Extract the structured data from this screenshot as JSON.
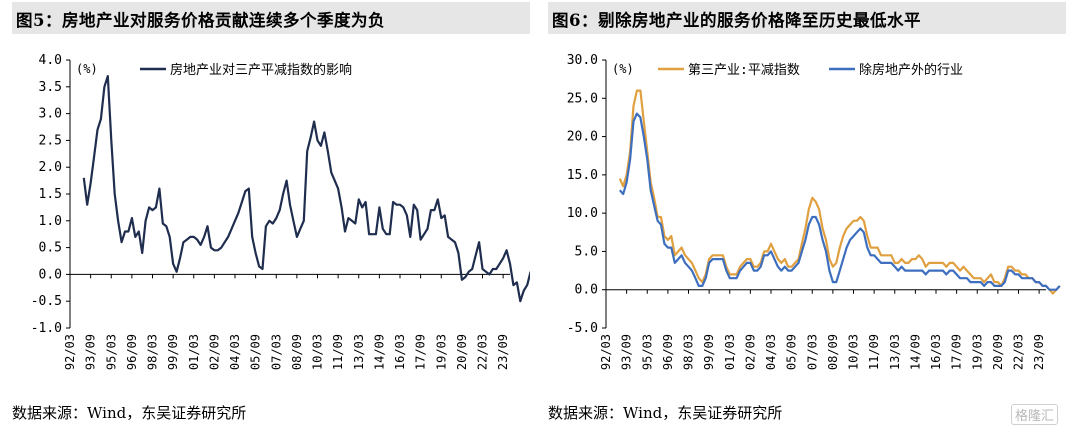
{
  "panels": [
    {
      "title": "图5：房地产业对服务价格贡献连续多个季度为负",
      "source": "数据来源：Wind，东吴证券研究所",
      "chart_data": {
        "type": "line",
        "unit_label": "(%)",
        "ylim": [
          -1.0,
          4.0
        ],
        "yticks": [
          "4.0",
          "3.5",
          "3.0",
          "2.5",
          "2.0",
          "1.5",
          "1.0",
          "0.5",
          "0.0",
          "-0.5",
          "-1.0"
        ],
        "ytick_values": [
          4.0,
          3.5,
          3.0,
          2.5,
          2.0,
          1.5,
          1.0,
          0.5,
          0.0,
          -0.5,
          -1.0
        ],
        "xticks": [
          "92/03",
          "93/09",
          "95/03",
          "96/09",
          "98/03",
          "99/09",
          "01/03",
          "02/09",
          "04/03",
          "05/09",
          "07/03",
          "08/09",
          "10/03",
          "11/09",
          "13/03",
          "14/09",
          "16/03",
          "17/09",
          "19/03",
          "20/09",
          "22/03",
          "23/09"
        ],
        "x_start": "1992Q1",
        "x_step": "quarter",
        "legend_position": "top",
        "series": [
          {
            "name": "房地产业对三产平减指数的影响",
            "color": "#1f2d4e",
            "x_start": "1993Q1",
            "values": [
              1.8,
              1.3,
              1.7,
              2.2,
              2.7,
              2.9,
              3.5,
              3.7,
              2.5,
              1.5,
              1.0,
              0.6,
              0.8,
              0.8,
              1.05,
              0.7,
              0.8,
              0.4,
              1.0,
              1.25,
              1.2,
              1.25,
              1.6,
              0.95,
              0.9,
              0.7,
              0.2,
              0.05,
              0.3,
              0.6,
              0.65,
              0.7,
              0.7,
              0.65,
              0.55,
              0.7,
              0.9,
              0.5,
              0.45,
              0.45,
              0.5,
              0.6,
              0.7,
              0.85,
              1.0,
              1.15,
              1.35,
              1.55,
              1.6,
              0.7,
              0.4,
              0.15,
              0.1,
              0.9,
              1.0,
              0.95,
              1.05,
              1.2,
              1.5,
              1.75,
              1.3,
              1.0,
              0.7,
              0.85,
              1.0,
              2.3,
              2.55,
              2.85,
              2.5,
              2.4,
              2.65,
              2.3,
              1.9,
              1.75,
              1.6,
              1.25,
              0.8,
              1.05,
              1.0,
              0.95,
              1.4,
              1.25,
              1.35,
              0.75,
              0.75,
              0.75,
              1.25,
              0.85,
              0.75,
              0.75,
              1.35,
              1.3,
              1.3,
              1.25,
              1.1,
              0.7,
              1.3,
              1.2,
              0.65,
              0.75,
              0.85,
              1.2,
              1.2,
              1.4,
              1.05,
              1.1,
              0.7,
              0.65,
              0.6,
              0.4,
              -0.1,
              -0.05,
              0.05,
              0.1,
              0.35,
              0.6,
              0.1,
              0.05,
              0.0,
              0.1,
              0.1,
              0.2,
              0.3,
              0.45,
              0.2,
              -0.2,
              -0.15,
              -0.5,
              -0.3,
              -0.2,
              0.05
            ]
          }
        ]
      }
    },
    {
      "title": "图6：剔除房地产业的服务价格降至历史最低水平",
      "source": "数据来源：Wind，东吴证券研究所",
      "chart_data": {
        "type": "line",
        "unit_label": "(%)",
        "ylim": [
          -5.0,
          30.0
        ],
        "yticks": [
          "30.0",
          "25.0",
          "20.0",
          "15.0",
          "10.0",
          "5.0",
          "0.0",
          "-5.0"
        ],
        "ytick_values": [
          30.0,
          25.0,
          20.0,
          15.0,
          10.0,
          5.0,
          0.0,
          -5.0
        ],
        "xticks": [
          "92/03",
          "93/09",
          "95/03",
          "96/09",
          "98/03",
          "99/09",
          "01/03",
          "02/09",
          "04/03",
          "05/09",
          "07/03",
          "08/09",
          "10/03",
          "11/09",
          "13/03",
          "14/09",
          "16/03",
          "17/09",
          "19/03",
          "20/09",
          "22/03",
          "23/09"
        ],
        "x_start": "1992Q1",
        "x_step": "quarter",
        "legend_position": "top",
        "series": [
          {
            "name": "第三产业:平减指数",
            "color": "#e0a040",
            "x_start": "1993Q1",
            "values": [
              14.5,
              13.5,
              15.0,
              18.0,
              24.0,
              26.0,
              26.0,
              22.0,
              18.0,
              14.0,
              12.0,
              9.5,
              9.5,
              7.0,
              6.5,
              7.0,
              4.5,
              5.0,
              5.5,
              4.5,
              4.0,
              3.5,
              2.5,
              1.5,
              1.0,
              2.0,
              4.0,
              4.5,
              4.5,
              4.5,
              4.5,
              3.0,
              2.0,
              2.0,
              2.0,
              3.0,
              3.5,
              4.0,
              4.0,
              3.0,
              3.0,
              3.5,
              5.0,
              5.0,
              6.0,
              5.0,
              4.0,
              3.5,
              4.0,
              3.0,
              3.0,
              3.5,
              4.0,
              6.0,
              8.0,
              10.5,
              12.0,
              11.5,
              10.5,
              8.0,
              6.5,
              4.0,
              3.0,
              3.5,
              5.5,
              7.0,
              8.0,
              8.5,
              9.0,
              9.0,
              9.5,
              9.0,
              7.0,
              5.5,
              5.5,
              5.5,
              4.5,
              4.5,
              4.5,
              4.5,
              3.5,
              3.5,
              4.0,
              3.5,
              3.5,
              4.0,
              4.0,
              4.5,
              4.0,
              3.0,
              3.5,
              3.5,
              3.5,
              3.5,
              3.5,
              3.0,
              3.5,
              3.5,
              3.0,
              2.5,
              3.0,
              2.5,
              2.0,
              1.5,
              1.5,
              1.5,
              1.0,
              1.5,
              2.0,
              1.0,
              1.0,
              0.5,
              1.5,
              3.0,
              3.0,
              2.5,
              2.5,
              2.0,
              2.0,
              1.5,
              1.5,
              1.0,
              1.0,
              0.5,
              0.5,
              0.0,
              -0.5,
              0.0,
              0.5
            ]
          },
          {
            "name": "除房地产外的行业",
            "color": "#3e6fbf",
            "x_start": "1993Q1",
            "values": [
              13.0,
              12.5,
              14.0,
              17.0,
              22.0,
              23.0,
              22.5,
              20.0,
              17.0,
              13.0,
              11.0,
              9.0,
              8.5,
              6.0,
              5.5,
              5.5,
              3.5,
              4.0,
              4.5,
              3.5,
              3.0,
              2.5,
              1.5,
              0.5,
              0.5,
              1.5,
              3.5,
              4.0,
              4.0,
              4.0,
              4.0,
              2.5,
              1.5,
              1.5,
              1.5,
              2.5,
              3.0,
              3.5,
              3.5,
              2.5,
              2.5,
              3.0,
              4.5,
              4.5,
              5.0,
              4.0,
              3.0,
              2.5,
              3.0,
              2.5,
              2.5,
              3.0,
              3.5,
              5.0,
              6.5,
              8.5,
              9.5,
              9.5,
              8.5,
              6.5,
              5.0,
              2.5,
              1.0,
              1.0,
              2.5,
              4.0,
              5.5,
              6.5,
              7.0,
              7.5,
              8.0,
              7.5,
              5.5,
              4.5,
              4.5,
              4.0,
              3.5,
              3.5,
              3.5,
              3.5,
              3.0,
              2.5,
              3.0,
              2.5,
              2.5,
              2.5,
              2.5,
              2.5,
              2.5,
              2.0,
              2.5,
              2.5,
              2.5,
              2.5,
              2.5,
              2.0,
              2.5,
              2.5,
              2.0,
              1.5,
              1.5,
              1.5,
              1.0,
              1.0,
              1.0,
              1.0,
              0.5,
              1.0,
              1.0,
              0.5,
              0.5,
              0.5,
              1.0,
              2.5,
              2.5,
              2.0,
              2.0,
              1.5,
              1.5,
              1.5,
              1.5,
              1.0,
              1.0,
              0.5,
              0.5,
              0.0,
              0.0,
              0.0,
              0.5
            ]
          }
        ]
      }
    }
  ],
  "watermark": "格隆汇"
}
